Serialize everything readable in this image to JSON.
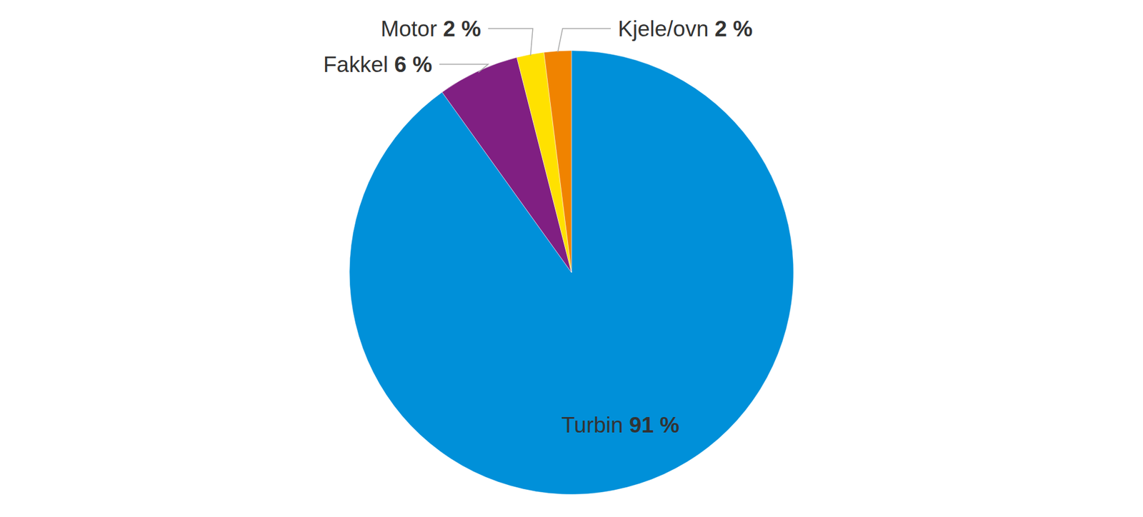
{
  "chart_data": {
    "type": "pie",
    "categories": [
      "Turbin",
      "Fakkel",
      "Motor",
      "Kjele/ovn"
    ],
    "values": [
      91,
      6,
      2,
      2
    ],
    "value_labels": [
      "91 %",
      "6 %",
      "2 %",
      "2 %"
    ],
    "colors": [
      "#0090d9",
      "#801f82",
      "#ffe100",
      "#f08300"
    ],
    "data_labels": true
  }
}
